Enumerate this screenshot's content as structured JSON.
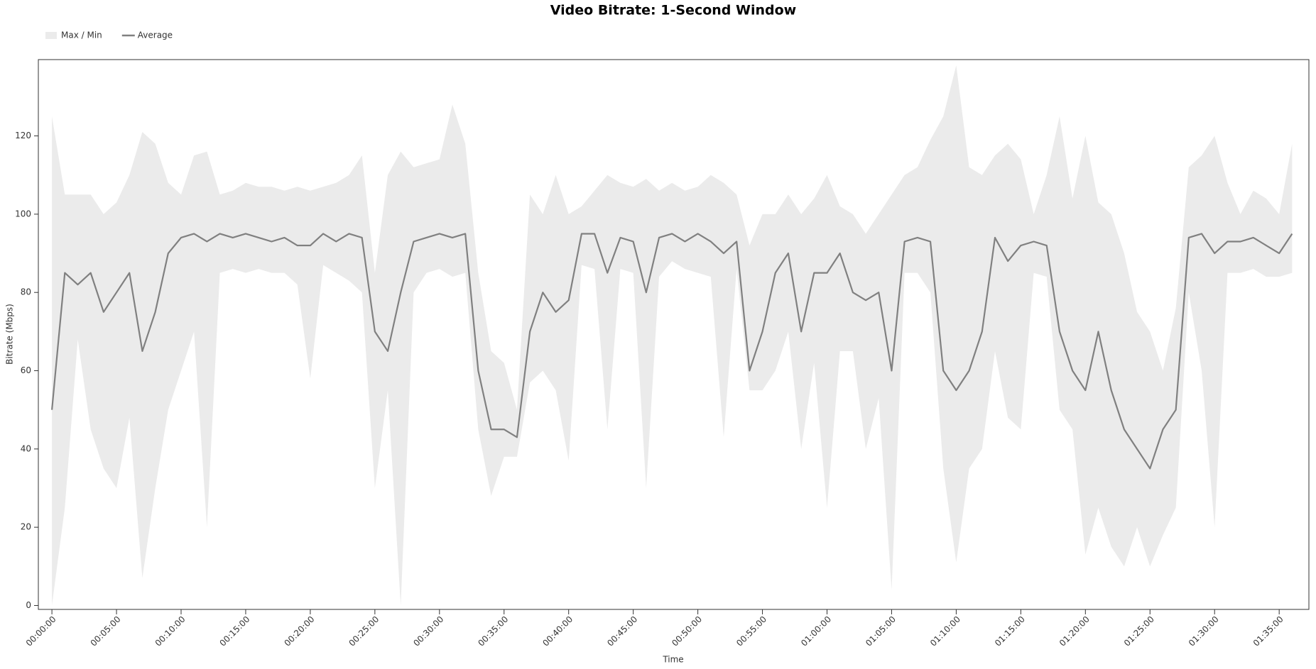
{
  "chart_data": {
    "type": "line",
    "title": "Video Bitrate: 1-Second Window",
    "x_label": "Time",
    "y_label": "Bitrate (Mbps)",
    "x": [
      0,
      60,
      120,
      180,
      240,
      300,
      360,
      420,
      480,
      540,
      600,
      660,
      720,
      780,
      840,
      900,
      960,
      1020,
      1080,
      1140,
      1200,
      1260,
      1320,
      1380,
      1440,
      1500,
      1560,
      1620,
      1680,
      1740,
      1800,
      1860,
      1920,
      1980,
      2040,
      2100,
      2160,
      2220,
      2280,
      2340,
      2400,
      2460,
      2520,
      2580,
      2640,
      2700,
      2760,
      2820,
      2880,
      2940,
      3000,
      3060,
      3120,
      3180,
      3240,
      3300,
      3360,
      3420,
      3480,
      3540,
      3600,
      3660,
      3720,
      3780,
      3840,
      3900,
      3960,
      4020,
      4080,
      4140,
      4200,
      4260,
      4320,
      4380,
      4440,
      4500,
      4560,
      4620,
      4680,
      4740,
      4800,
      4860,
      4920,
      4980,
      5040,
      5100,
      5160,
      5220,
      5280,
      5340,
      5400,
      5460,
      5520,
      5580,
      5640,
      5700,
      5760
    ],
    "series": [
      {
        "name": "Max / Min",
        "color": "#ebebeb",
        "upper": [
          125,
          105,
          105,
          105,
          100,
          103,
          110,
          121,
          118,
          108,
          105,
          115,
          116,
          105,
          106,
          108,
          107,
          107,
          106,
          107,
          106,
          107,
          108,
          110,
          115,
          85,
          110,
          116,
          112,
          113,
          114,
          128,
          118,
          85,
          65,
          62,
          50,
          105,
          100,
          110,
          100,
          102,
          106,
          110,
          108,
          107,
          109,
          106,
          108,
          106,
          107,
          110,
          108,
          105,
          92,
          100,
          100,
          105,
          100,
          104,
          110,
          102,
          100,
          95,
          100,
          105,
          110,
          112,
          119,
          125,
          138,
          112,
          110,
          115,
          118,
          114,
          100,
          110,
          125,
          104,
          120,
          103,
          100,
          90,
          75,
          70,
          60,
          76,
          112,
          115,
          120,
          108,
          100,
          106,
          104,
          100,
          118
        ],
        "lower": [
          0,
          25,
          68,
          45,
          35,
          30,
          48,
          7,
          30,
          50,
          60,
          70,
          20,
          85,
          86,
          85,
          86,
          85,
          85,
          82,
          58,
          87,
          85,
          83,
          80,
          30,
          55,
          0,
          80,
          85,
          86,
          84,
          85,
          45,
          28,
          38,
          38,
          57,
          60,
          55,
          37,
          87,
          86,
          45,
          86,
          85,
          30,
          84,
          88,
          86,
          85,
          84,
          43,
          86,
          55,
          55,
          60,
          70,
          40,
          62,
          25,
          65,
          65,
          40,
          53,
          4,
          85,
          85,
          80,
          35,
          11,
          35,
          40,
          65,
          48,
          45,
          85,
          84,
          50,
          45,
          13,
          25,
          15,
          10,
          20,
          10,
          18,
          25,
          80,
          60,
          20,
          85,
          85,
          86,
          84,
          84,
          85
        ]
      },
      {
        "name": "Average",
        "color": "#808080",
        "values": [
          50,
          85,
          82,
          85,
          75,
          80,
          85,
          65,
          75,
          90,
          94,
          95,
          93,
          95,
          94,
          95,
          94,
          93,
          94,
          92,
          92,
          95,
          93,
          95,
          94,
          70,
          65,
          80,
          93,
          94,
          95,
          94,
          95,
          60,
          45,
          45,
          43,
          70,
          80,
          75,
          78,
          95,
          95,
          85,
          94,
          93,
          80,
          94,
          95,
          93,
          95,
          93,
          90,
          93,
          60,
          70,
          85,
          90,
          70,
          85,
          85,
          90,
          80,
          78,
          80,
          60,
          93,
          94,
          93,
          60,
          55,
          60,
          70,
          94,
          88,
          92,
          93,
          92,
          70,
          60,
          55,
          70,
          55,
          45,
          40,
          35,
          45,
          50,
          94,
          95,
          90,
          93,
          93,
          94,
          92,
          90,
          95
        ]
      }
    ],
    "xlim": [
      -63,
      5838
    ],
    "ylim": [
      -1,
      139.5
    ],
    "yticks": [
      0,
      20,
      40,
      60,
      80,
      100,
      120
    ],
    "xticks": [
      {
        "value": 0,
        "label": "00:00:00"
      },
      {
        "value": 300,
        "label": "00:05:00"
      },
      {
        "value": 600,
        "label": "00:10:00"
      },
      {
        "value": 900,
        "label": "00:15:00"
      },
      {
        "value": 1200,
        "label": "00:20:00"
      },
      {
        "value": 1500,
        "label": "00:25:00"
      },
      {
        "value": 1800,
        "label": "00:30:00"
      },
      {
        "value": 2100,
        "label": "00:35:00"
      },
      {
        "value": 2400,
        "label": "00:40:00"
      },
      {
        "value": 2700,
        "label": "00:45:00"
      },
      {
        "value": 3000,
        "label": "00:50:00"
      },
      {
        "value": 3300,
        "label": "00:55:00"
      },
      {
        "value": 3600,
        "label": "01:00:00"
      },
      {
        "value": 3900,
        "label": "01:05:00"
      },
      {
        "value": 4200,
        "label": "01:10:00"
      },
      {
        "value": 4500,
        "label": "01:15:00"
      },
      {
        "value": 4800,
        "label": "01:20:00"
      },
      {
        "value": 5100,
        "label": "01:25:00"
      },
      {
        "value": 5400,
        "label": "01:30:00"
      },
      {
        "value": 5700,
        "label": "01:35:00"
      }
    ],
    "grid": false,
    "legend": "top-left"
  }
}
